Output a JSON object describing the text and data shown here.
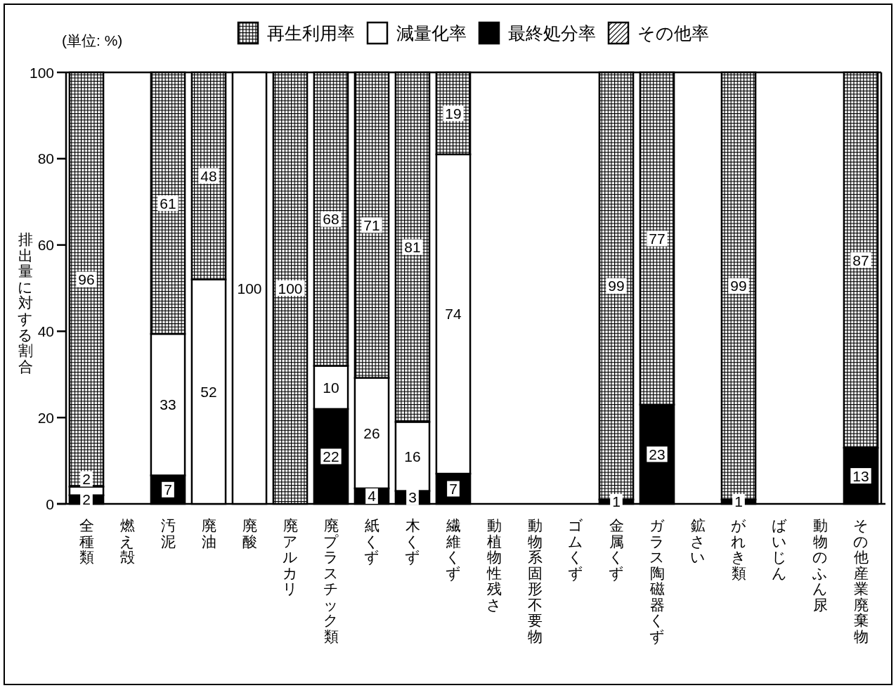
{
  "chart_data": {
    "type": "bar",
    "stacked": true,
    "ylabel": "排出量に対する割合",
    "annotations": [
      "(単位: %)"
    ],
    "legend": "top",
    "categories": [
      "全種類",
      "燃え殻",
      "汚泥",
      "廃油",
      "廃酸",
      "廃アルカリ",
      "廃プラスチック類",
      "紙くず",
      "木くず",
      "繊維くず",
      "動植物性残さ",
      "動物系固形不要物",
      "ゴムくず",
      "金属くず",
      "ガラス陶磁器くず",
      "鉱さい",
      "がれき類",
      "ばいじん",
      "動物のふん尿",
      "その他産業廃棄物"
    ],
    "ylim": [
      0,
      100
    ],
    "yticks": [
      0,
      20,
      40,
      60,
      80,
      100
    ],
    "series": [
      {
        "name": "最終処分率",
        "color": "#000000",
        "values": [
          2,
          null,
          6.6,
          null,
          null,
          null,
          22,
          3.6,
          3,
          7,
          null,
          null,
          null,
          1,
          23,
          null,
          1,
          null,
          null,
          13
        ],
        "value_labels": [
          "2",
          null,
          "7",
          null,
          null,
          null,
          "22",
          "4",
          "3",
          "7",
          null,
          null,
          null,
          "1",
          "23",
          null,
          "1",
          null,
          null,
          "13"
        ]
      },
      {
        "name": "減量化率",
        "color": "#ffffff",
        "values": [
          2,
          null,
          32.8,
          52,
          100,
          null,
          10,
          25.6,
          16,
          74,
          null,
          null,
          null,
          null,
          null,
          null,
          null,
          null,
          null,
          null
        ],
        "value_labels": [
          "2",
          null,
          "33",
          "52",
          "100",
          null,
          "10",
          "26",
          "16",
          "74",
          null,
          null,
          null,
          null,
          null,
          null,
          null,
          null,
          null,
          null
        ]
      },
      {
        "name": "再生利用率",
        "color": "#000000",
        "values": [
          96,
          null,
          60.6,
          48,
          null,
          100,
          68,
          70.8,
          81,
          19,
          null,
          null,
          null,
          99,
          77,
          null,
          99,
          null,
          null,
          87
        ],
        "value_labels": [
          "96",
          null,
          "61",
          "48",
          null,
          "100",
          "68",
          "71",
          "81",
          "19",
          null,
          null,
          null,
          "99",
          "77",
          null,
          "99",
          null,
          null,
          "87"
        ]
      },
      {
        "name": "その他率",
        "color": "#000000",
        "values": [
          null,
          null,
          null,
          null,
          null,
          null,
          null,
          null,
          null,
          null,
          null,
          null,
          null,
          null,
          null,
          null,
          null,
          null,
          null,
          null
        ]
      }
    ]
  }
}
